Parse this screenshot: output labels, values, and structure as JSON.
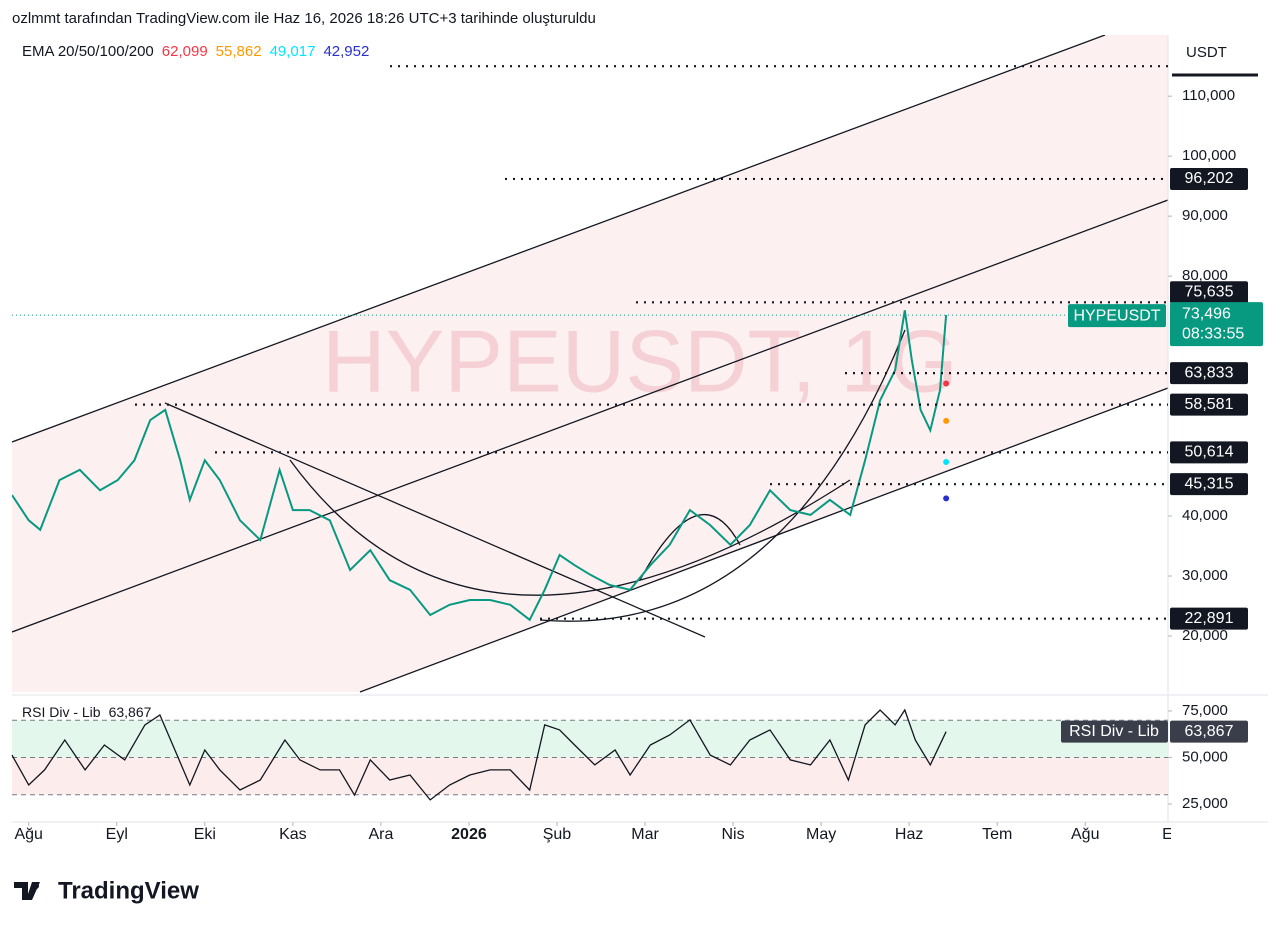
{
  "header": "ozlmmt tarafından TradingView.com ile Haz 16, 2026 18:26 UTC+3 tarihinde oluşturuldu",
  "brand": "TradingView",
  "chart_data": {
    "type": "line",
    "watermark": "HYPEUSDT, 1G",
    "axis_label": "USDT",
    "x": [
      -0.19,
      0,
      0.13,
      0.35,
      0.58,
      0.81,
      1.01,
      1.2,
      1.38,
      1.55,
      1.72,
      1.83,
      2,
      2.17,
      2.4,
      2.63,
      2.85,
      3,
      3.19,
      3.42,
      3.65,
      3.88,
      4.1,
      4.33,
      4.56,
      4.78,
      5.01,
      5.24,
      5.47,
      5.69,
      5.86,
      6.03,
      6.2,
      6.38,
      6.6,
      6.83,
      7.06,
      7.28,
      7.51,
      7.74,
      7.97,
      8.19,
      8.42,
      8.65,
      8.88,
      9.1,
      9.33,
      9.5,
      9.67,
      9.84,
      9.95,
      10.03,
      10.13,
      10.24,
      10.35,
      10.42
    ],
    "xlim": [
      -0.19,
      12.94
    ],
    "xticks": [
      {
        "value": 0,
        "label": "Ağu"
      },
      {
        "value": 1,
        "label": "Eyl"
      },
      {
        "value": 2,
        "label": "Eki"
      },
      {
        "value": 3,
        "label": "Kas"
      },
      {
        "value": 4,
        "label": "Ara"
      },
      {
        "value": 5,
        "label": "2026"
      },
      {
        "value": 6,
        "label": "Şub"
      },
      {
        "value": 7,
        "label": "Mar"
      },
      {
        "value": 8,
        "label": "Nis"
      },
      {
        "value": 9,
        "label": "May"
      },
      {
        "value": 10,
        "label": "Haz"
      },
      {
        "value": 11,
        "label": "Tem"
      },
      {
        "value": 12,
        "label": "Ağu"
      },
      {
        "value": 13,
        "label": "Eyl"
      }
    ],
    "series": [
      {
        "name": "HYPEUSDT",
        "color": "#089981",
        "values": [
          43.5,
          39.3,
          37.7,
          46,
          47.7,
          44.3,
          46,
          49.3,
          56,
          57.7,
          49.3,
          42.7,
          49.3,
          46,
          39.3,
          36,
          47.7,
          41,
          41,
          39.3,
          31,
          34.3,
          29.3,
          27.7,
          23.5,
          25.2,
          26,
          26,
          25.2,
          22.7,
          27.7,
          33.5,
          31.8,
          30.2,
          28.5,
          27.7,
          31.8,
          35.2,
          41,
          38.5,
          35.2,
          38.5,
          44.3,
          41,
          40.2,
          42.7,
          40.2,
          49.3,
          59.3,
          64.3,
          74.3,
          66,
          57.7,
          54.3,
          61,
          73.496
        ]
      }
    ],
    "last_price_label": "73,496",
    "countdown": "08:33:55",
    "ylim": [
      10.5,
      120.2
    ],
    "yticks": [
      {
        "value": 20,
        "label": "20,000"
      },
      {
        "value": 30,
        "label": "30,000"
      },
      {
        "value": 40,
        "label": "40,000"
      },
      {
        "value": 80,
        "label": "80,000"
      },
      {
        "value": 90,
        "label": "90,000"
      },
      {
        "value": 100,
        "label": "100,000"
      },
      {
        "value": 110,
        "label": "110,000"
      }
    ],
    "levels": [
      {
        "value": 115
      },
      {
        "value": 96.202,
        "label": "96,202"
      },
      {
        "value": 75.635,
        "label": "75,635"
      },
      {
        "value": 63.833,
        "label": "63,833"
      },
      {
        "value": 58.581,
        "label": "58,581"
      },
      {
        "value": 50.614,
        "label": "50,614"
      },
      {
        "value": 45.315,
        "label": "45,315"
      },
      {
        "value": 22.891,
        "label": "22,891"
      }
    ],
    "ema": {
      "label": "EMA 20/50/100/200",
      "values": [
        62.099,
        55.862,
        49.017,
        42.952
      ],
      "value_labels": [
        "62,099",
        "55,862",
        "49,017",
        "42,952"
      ],
      "colors": [
        "#f23645",
        "#ff9800",
        "#00e5ff",
        "#2a2ecd"
      ]
    },
    "rsi": {
      "label": "RSI Div - Lib",
      "color": "#131722",
      "x": [
        -0.19,
        0,
        0.18,
        0.41,
        0.64,
        0.86,
        1.09,
        1.32,
        1.49,
        1.66,
        1.83,
        2,
        2.17,
        2.4,
        2.63,
        2.91,
        3.08,
        3.31,
        3.53,
        3.7,
        3.88,
        4.1,
        4.33,
        4.56,
        4.78,
        5.01,
        5.24,
        5.47,
        5.69,
        5.86,
        6.03,
        6.2,
        6.43,
        6.66,
        6.83,
        7.06,
        7.28,
        7.51,
        7.74,
        7.97,
        8.19,
        8.42,
        8.65,
        8.88,
        9.1,
        9.31,
        9.5,
        9.67,
        9.84,
        9.95,
        10.07,
        10.24,
        10.42
      ],
      "values": [
        51.3,
        35.2,
        43.3,
        59.4,
        43.3,
        56.7,
        48.7,
        67.5,
        72.8,
        54,
        35.2,
        54,
        43.3,
        32.5,
        37.9,
        59.4,
        48.7,
        43.3,
        43.3,
        29.8,
        48.7,
        37.9,
        40.6,
        27.2,
        35.2,
        40.6,
        43.3,
        43.3,
        32.5,
        67.5,
        64.8,
        56.7,
        46,
        54,
        40.6,
        56.7,
        62.1,
        70.2,
        51.3,
        46,
        59.4,
        64.8,
        48.7,
        46,
        59.4,
        37.9,
        67.5,
        75.5,
        67.5,
        75.5,
        59.4,
        46,
        63.867
      ],
      "last_label": "63,867",
      "ylim": [
        16.4,
        82.5
      ],
      "yticks": [
        {
          "value": 25,
          "label": "25,000"
        },
        {
          "value": 50,
          "label": "50,000"
        },
        {
          "value": 75,
          "label": "75,000"
        }
      ],
      "bands": [
        30,
        50,
        70
      ]
    }
  }
}
